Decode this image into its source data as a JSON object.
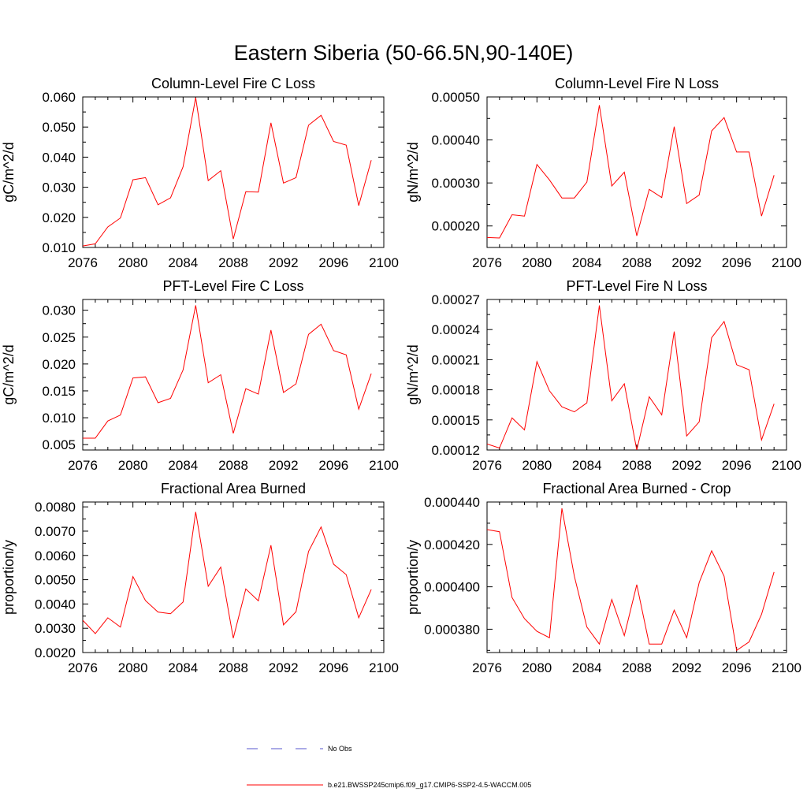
{
  "figure": {
    "title": "Eastern Siberia (50-66.5N,90-140E)"
  },
  "chart_data": [
    {
      "type": "line",
      "title": "Column-Level Fire C Loss",
      "xlabel": "",
      "ylabel": "gC/m^2/d",
      "xlim": [
        2076,
        2100
      ],
      "ylim": [
        0.01,
        0.06
      ],
      "xticks": [
        2076,
        2080,
        2084,
        2088,
        2092,
        2096,
        2100
      ],
      "yticks": [
        0.01,
        0.02,
        0.03,
        0.04,
        0.05,
        0.06
      ],
      "ytick_labels": [
        "0.010",
        "0.020",
        "0.030",
        "0.040",
        "0.050",
        "0.060"
      ],
      "x": [
        2076,
        2077,
        2078,
        2079,
        2080,
        2081,
        2082,
        2083,
        2084,
        2085,
        2086,
        2087,
        2088,
        2089,
        2090,
        2091,
        2092,
        2093,
        2094,
        2095,
        2096,
        2097,
        2098,
        2099
      ],
      "series": [
        {
          "name": "b.e21.BWSSP245cmip6.f09_g17.CMIP6-SSP2-4.5-WACCM.005",
          "color": "#ff0000",
          "values": [
            0.0105,
            0.0112,
            0.0168,
            0.0198,
            0.0325,
            0.0332,
            0.0242,
            0.0265,
            0.0368,
            0.0598,
            0.0322,
            0.0355,
            0.0128,
            0.0285,
            0.0284,
            0.0514,
            0.0314,
            0.0332,
            0.0506,
            0.0539,
            0.0452,
            0.044,
            0.0239,
            0.039
          ]
        }
      ]
    },
    {
      "type": "line",
      "title": "Column-Level Fire N Loss",
      "xlabel": "",
      "ylabel": "gN/m^2/d",
      "xlim": [
        2076,
        2100
      ],
      "ylim": [
        0.00015,
        0.0005
      ],
      "xticks": [
        2076,
        2080,
        2084,
        2088,
        2092,
        2096,
        2100
      ],
      "yticks": [
        0.0002,
        0.0003,
        0.0004,
        0.0005
      ],
      "ytick_labels": [
        "0.00020",
        "0.00030",
        "0.00040",
        "0.00050"
      ],
      "x": [
        2076,
        2077,
        2078,
        2079,
        2080,
        2081,
        2082,
        2083,
        2084,
        2085,
        2086,
        2087,
        2088,
        2089,
        2090,
        2091,
        2092,
        2093,
        2094,
        2095,
        2096,
        2097,
        2098,
        2099
      ],
      "series": [
        {
          "name": "b.e21.BWSSP245cmip6.f09_g17.CMIP6-SSP2-4.5-WACCM.005",
          "color": "#ff0000",
          "values": [
            0.000173,
            0.000172,
            0.000226,
            0.000223,
            0.000343,
            0.000307,
            0.000265,
            0.000265,
            0.000302,
            0.000481,
            0.000293,
            0.000325,
            0.000177,
            0.000285,
            0.000266,
            0.000431,
            0.000252,
            0.000272,
            0.000421,
            0.000452,
            0.000372,
            0.000372,
            0.000223,
            0.000318
          ]
        }
      ]
    },
    {
      "type": "line",
      "title": "PFT-Level Fire C Loss",
      "xlabel": "",
      "ylabel": "gC/m^2/d",
      "xlim": [
        2076,
        2100
      ],
      "ylim": [
        0.004,
        0.032
      ],
      "xticks": [
        2076,
        2080,
        2084,
        2088,
        2092,
        2096,
        2100
      ],
      "yticks": [
        0.005,
        0.01,
        0.015,
        0.02,
        0.025,
        0.03
      ],
      "ytick_labels": [
        "0.005",
        "0.010",
        "0.015",
        "0.020",
        "0.025",
        "0.030"
      ],
      "x": [
        2076,
        2077,
        2078,
        2079,
        2080,
        2081,
        2082,
        2083,
        2084,
        2085,
        2086,
        2087,
        2088,
        2089,
        2090,
        2091,
        2092,
        2093,
        2094,
        2095,
        2096,
        2097,
        2098,
        2099
      ],
      "series": [
        {
          "name": "b.e21.BWSSP245cmip6.f09_g17.CMIP6-SSP2-4.5-WACCM.005",
          "color": "#ff0000",
          "values": [
            0.0062,
            0.0062,
            0.0094,
            0.0105,
            0.0174,
            0.0176,
            0.0128,
            0.0136,
            0.0189,
            0.0309,
            0.0165,
            0.018,
            0.0071,
            0.0154,
            0.0144,
            0.0263,
            0.0147,
            0.0163,
            0.0255,
            0.0274,
            0.0225,
            0.0217,
            0.0116,
            0.0182
          ]
        }
      ]
    },
    {
      "type": "line",
      "title": "PFT-Level Fire N Loss",
      "xlabel": "",
      "ylabel": "gN/m^2/d",
      "xlim": [
        2076,
        2100
      ],
      "ylim": [
        0.00012,
        0.00027
      ],
      "xticks": [
        2076,
        2080,
        2084,
        2088,
        2092,
        2096,
        2100
      ],
      "yticks": [
        0.00012,
        0.00015,
        0.00018,
        0.00021,
        0.00024,
        0.00027
      ],
      "ytick_labels": [
        "0.00012",
        "0.00015",
        "0.00018",
        "0.00021",
        "0.00024",
        "0.00027"
      ],
      "x": [
        2076,
        2077,
        2078,
        2079,
        2080,
        2081,
        2082,
        2083,
        2084,
        2085,
        2086,
        2087,
        2088,
        2089,
        2090,
        2091,
        2092,
        2093,
        2094,
        2095,
        2096,
        2097,
        2098,
        2099
      ],
      "series": [
        {
          "name": "b.e21.BWSSP245cmip6.f09_g17.CMIP6-SSP2-4.5-WACCM.005",
          "color": "#ff0000",
          "values": [
            0.000126,
            0.000122,
            0.000152,
            0.00014,
            0.000208,
            0.000179,
            0.000163,
            0.000158,
            0.000167,
            0.000264,
            0.000169,
            0.000186,
            0.00012,
            0.000173,
            0.000155,
            0.000238,
            0.000134,
            0.000148,
            0.000232,
            0.000248,
            0.000205,
            0.0002,
            0.00013,
            0.000166
          ]
        }
      ]
    },
    {
      "type": "line",
      "title": "Fractional Area Burned",
      "xlabel": "",
      "ylabel": "proportion/y",
      "xlim": [
        2076,
        2100
      ],
      "ylim": [
        0.002,
        0.0082
      ],
      "xticks": [
        2076,
        2080,
        2084,
        2088,
        2092,
        2096,
        2100
      ],
      "yticks": [
        0.002,
        0.003,
        0.004,
        0.005,
        0.006,
        0.007,
        0.008
      ],
      "ytick_labels": [
        "0.0020",
        "0.0030",
        "0.0040",
        "0.0050",
        "0.0060",
        "0.0070",
        "0.0080"
      ],
      "x": [
        2076,
        2077,
        2078,
        2079,
        2080,
        2081,
        2082,
        2083,
        2084,
        2085,
        2086,
        2087,
        2088,
        2089,
        2090,
        2091,
        2092,
        2093,
        2094,
        2095,
        2096,
        2097,
        2098,
        2099
      ],
      "series": [
        {
          "name": "b.e21.BWSSP245cmip6.f09_g17.CMIP6-SSP2-4.5-WACCM.005",
          "color": "#ff0000",
          "values": [
            0.00333,
            0.00278,
            0.00343,
            0.00305,
            0.00513,
            0.00414,
            0.00367,
            0.0036,
            0.00408,
            0.00779,
            0.00473,
            0.00552,
            0.00259,
            0.00462,
            0.00413,
            0.00642,
            0.00314,
            0.00368,
            0.00616,
            0.00717,
            0.00564,
            0.00521,
            0.00343,
            0.0046
          ]
        }
      ]
    },
    {
      "type": "line",
      "title": "Fractional Area Burned - Crop",
      "xlabel": "",
      "ylabel": "proportion/y",
      "xlim": [
        2076,
        2100
      ],
      "ylim": [
        0.000369,
        0.00044
      ],
      "xticks": [
        2076,
        2080,
        2084,
        2088,
        2092,
        2096,
        2100
      ],
      "yticks": [
        0.00038,
        0.0004,
        0.00042,
        0.00044
      ],
      "ytick_labels": [
        "0.000380",
        "0.000400",
        "0.000420",
        "0.000440"
      ],
      "x": [
        2076,
        2077,
        2078,
        2079,
        2080,
        2081,
        2082,
        2083,
        2084,
        2085,
        2086,
        2087,
        2088,
        2089,
        2090,
        2091,
        2092,
        2093,
        2094,
        2095,
        2096,
        2097,
        2098,
        2099
      ],
      "series": [
        {
          "name": "b.e21.BWSSP245cmip6.f09_g17.CMIP6-SSP2-4.5-WACCM.005",
          "color": "#ff0000",
          "values": [
            0.000427,
            0.000426,
            0.000395,
            0.000385,
            0.000379,
            0.000376,
            0.000437,
            0.000405,
            0.000381,
            0.000373,
            0.000394,
            0.000377,
            0.000401,
            0.000373,
            0.000373,
            0.000389,
            0.000376,
            0.000402,
            0.000417,
            0.000405,
            0.00037,
            0.000374,
            0.000387,
            0.000407
          ]
        }
      ]
    }
  ],
  "legend": {
    "entries": [
      {
        "label": "No Obs",
        "color": "#5555cc",
        "style": "dashed"
      },
      {
        "label": "b.e21.BWSSP245cmip6.f09_g17.CMIP6-SSP2-4.5-WACCM.005",
        "color": "#ff0000",
        "style": "solid"
      }
    ]
  }
}
